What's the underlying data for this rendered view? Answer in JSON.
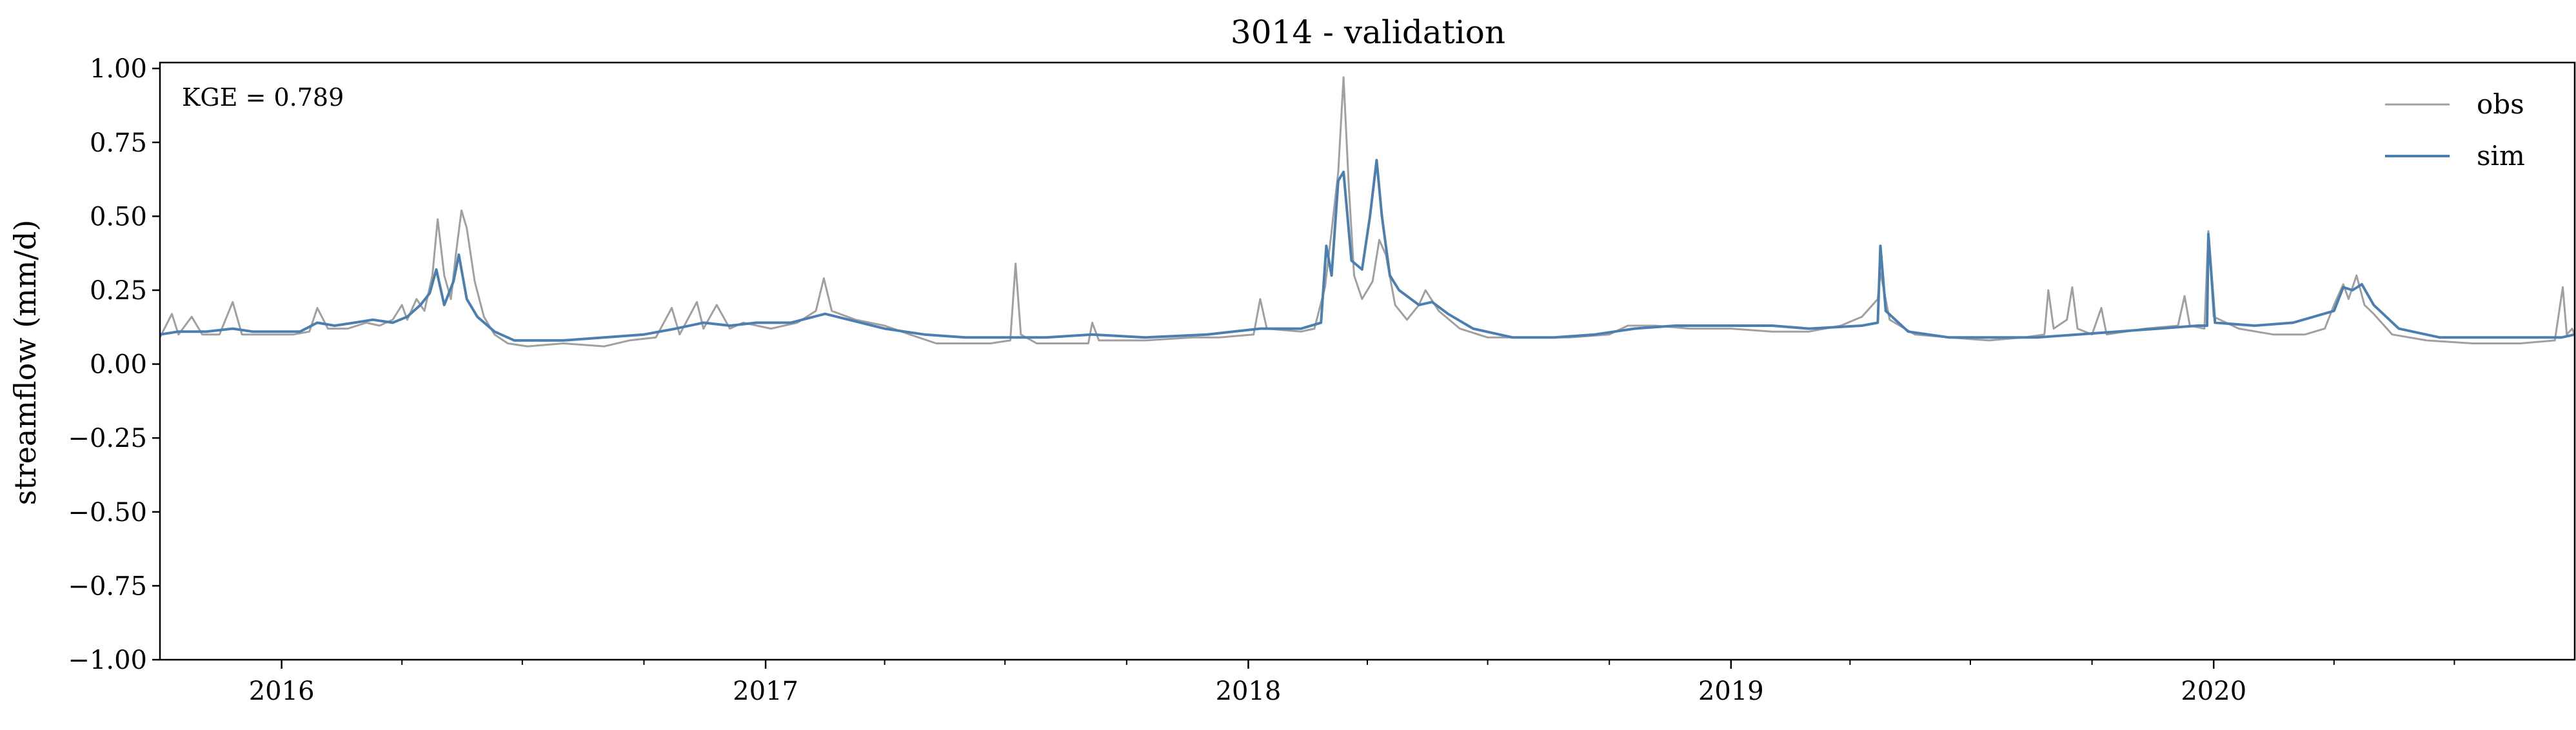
{
  "chart_data": {
    "type": "line",
    "title": "3014 - validation",
    "xlabel": "",
    "ylabel": "streamflow (mm/d)",
    "xlim": [
      "2015-10-01",
      "2020-09-30"
    ],
    "ylim": [
      -1.0,
      1.02
    ],
    "grid": false,
    "legend_position": "top-right",
    "annotation": "KGE = 0.789",
    "yticks": [
      -1.0,
      -0.75,
      -0.5,
      -0.25,
      0.0,
      0.25,
      0.5,
      0.75,
      1.0
    ],
    "ytick_labels": [
      "−1.00",
      "−0.75",
      "−0.50",
      "−0.25",
      "0.00",
      "0.25",
      "0.50",
      "0.75",
      "1.00"
    ],
    "xticks": [
      "2016-01-01",
      "2017-01-01",
      "2018-01-01",
      "2019-01-01",
      "2020-01-01"
    ],
    "xtick_labels": [
      "2016",
      "2017",
      "2018",
      "2019",
      "2020"
    ],
    "series": [
      {
        "name": "obs",
        "color": "#a0a0a0",
        "points": [
          [
            "2015-10-01",
            0.09
          ],
          [
            "2015-10-10",
            0.17
          ],
          [
            "2015-10-15",
            0.1
          ],
          [
            "2015-10-25",
            0.16
          ],
          [
            "2015-11-02",
            0.1
          ],
          [
            "2015-11-15",
            0.1
          ],
          [
            "2015-11-25",
            0.21
          ],
          [
            "2015-12-02",
            0.1
          ],
          [
            "2015-12-20",
            0.1
          ],
          [
            "2016-01-10",
            0.1
          ],
          [
            "2016-01-22",
            0.11
          ],
          [
            "2016-01-28",
            0.19
          ],
          [
            "2016-02-05",
            0.12
          ],
          [
            "2016-02-20",
            0.12
          ],
          [
            "2016-03-05",
            0.14
          ],
          [
            "2016-03-15",
            0.13
          ],
          [
            "2016-03-25",
            0.15
          ],
          [
            "2016-04-01",
            0.2
          ],
          [
            "2016-04-05",
            0.15
          ],
          [
            "2016-04-12",
            0.22
          ],
          [
            "2016-04-18",
            0.18
          ],
          [
            "2016-04-24",
            0.3
          ],
          [
            "2016-04-28",
            0.49
          ],
          [
            "2016-05-03",
            0.3
          ],
          [
            "2016-05-08",
            0.22
          ],
          [
            "2016-05-12",
            0.38
          ],
          [
            "2016-05-16",
            0.52
          ],
          [
            "2016-05-20",
            0.46
          ],
          [
            "2016-05-26",
            0.28
          ],
          [
            "2016-06-02",
            0.16
          ],
          [
            "2016-06-10",
            0.1
          ],
          [
            "2016-06-20",
            0.07
          ],
          [
            "2016-07-05",
            0.06
          ],
          [
            "2016-08-01",
            0.07
          ],
          [
            "2016-09-01",
            0.06
          ],
          [
            "2016-09-20",
            0.08
          ],
          [
            "2016-10-10",
            0.09
          ],
          [
            "2016-10-22",
            0.19
          ],
          [
            "2016-10-28",
            0.1
          ],
          [
            "2016-11-10",
            0.21
          ],
          [
            "2016-11-15",
            0.12
          ],
          [
            "2016-11-25",
            0.2
          ],
          [
            "2016-12-05",
            0.12
          ],
          [
            "2016-12-15",
            0.14
          ],
          [
            "2017-01-05",
            0.12
          ],
          [
            "2017-01-25",
            0.14
          ],
          [
            "2017-02-08",
            0.18
          ],
          [
            "2017-02-14",
            0.29
          ],
          [
            "2017-02-20",
            0.18
          ],
          [
            "2017-03-10",
            0.15
          ],
          [
            "2017-04-01",
            0.13
          ],
          [
            "2017-04-20",
            0.1
          ],
          [
            "2017-05-10",
            0.07
          ],
          [
            "2017-06-05",
            0.07
          ],
          [
            "2017-06-20",
            0.07
          ],
          [
            "2017-07-05",
            0.08
          ],
          [
            "2017-07-09",
            0.34
          ],
          [
            "2017-07-13",
            0.1
          ],
          [
            "2017-07-25",
            0.07
          ],
          [
            "2017-08-20",
            0.07
          ],
          [
            "2017-09-02",
            0.07
          ],
          [
            "2017-09-05",
            0.14
          ],
          [
            "2017-09-10",
            0.08
          ],
          [
            "2017-10-15",
            0.08
          ],
          [
            "2017-11-20",
            0.09
          ],
          [
            "2017-12-10",
            0.09
          ],
          [
            "2018-01-05",
            0.1
          ],
          [
            "2018-01-10",
            0.22
          ],
          [
            "2018-01-15",
            0.12
          ],
          [
            "2018-02-10",
            0.11
          ],
          [
            "2018-02-20",
            0.12
          ],
          [
            "2018-02-28",
            0.26
          ],
          [
            "2018-03-05",
            0.45
          ],
          [
            "2018-03-10",
            0.65
          ],
          [
            "2018-03-14",
            0.97
          ],
          [
            "2018-03-18",
            0.6
          ],
          [
            "2018-03-22",
            0.3
          ],
          [
            "2018-03-28",
            0.22
          ],
          [
            "2018-04-05",
            0.28
          ],
          [
            "2018-04-10",
            0.42
          ],
          [
            "2018-04-15",
            0.37
          ],
          [
            "2018-04-22",
            0.2
          ],
          [
            "2018-05-01",
            0.15
          ],
          [
            "2018-05-10",
            0.2
          ],
          [
            "2018-05-15",
            0.25
          ],
          [
            "2018-05-25",
            0.18
          ],
          [
            "2018-06-10",
            0.12
          ],
          [
            "2018-07-01",
            0.09
          ],
          [
            "2018-08-01",
            0.09
          ],
          [
            "2018-09-01",
            0.09
          ],
          [
            "2018-10-01",
            0.1
          ],
          [
            "2018-10-15",
            0.13
          ],
          [
            "2018-11-05",
            0.13
          ],
          [
            "2018-12-01",
            0.12
          ],
          [
            "2019-01-01",
            0.12
          ],
          [
            "2019-02-01",
            0.11
          ],
          [
            "2019-03-01",
            0.11
          ],
          [
            "2019-03-25",
            0.13
          ],
          [
            "2019-04-10",
            0.16
          ],
          [
            "2019-04-22",
            0.22
          ],
          [
            "2019-04-24",
            0.31
          ],
          [
            "2019-05-01",
            0.15
          ],
          [
            "2019-05-20",
            0.1
          ],
          [
            "2019-06-15",
            0.09
          ],
          [
            "2019-07-15",
            0.08
          ],
          [
            "2019-08-10",
            0.09
          ],
          [
            "2019-08-26",
            0.1
          ],
          [
            "2019-08-29",
            0.25
          ],
          [
            "2019-09-02",
            0.12
          ],
          [
            "2019-09-12",
            0.15
          ],
          [
            "2019-09-16",
            0.26
          ],
          [
            "2019-09-20",
            0.12
          ],
          [
            "2019-10-01",
            0.1
          ],
          [
            "2019-10-08",
            0.19
          ],
          [
            "2019-10-12",
            0.1
          ],
          [
            "2019-11-10",
            0.12
          ],
          [
            "2019-12-05",
            0.13
          ],
          [
            "2019-12-10",
            0.23
          ],
          [
            "2019-12-14",
            0.13
          ],
          [
            "2019-12-25",
            0.12
          ],
          [
            "2019-12-28",
            0.45
          ],
          [
            "2020-01-01",
            0.16
          ],
          [
            "2020-01-20",
            0.12
          ],
          [
            "2020-02-15",
            0.1
          ],
          [
            "2020-03-10",
            0.1
          ],
          [
            "2020-03-25",
            0.12
          ],
          [
            "2020-04-01",
            0.2
          ],
          [
            "2020-04-08",
            0.27
          ],
          [
            "2020-04-12",
            0.22
          ],
          [
            "2020-04-18",
            0.3
          ],
          [
            "2020-04-24",
            0.2
          ],
          [
            "2020-05-01",
            0.17
          ],
          [
            "2020-05-15",
            0.1
          ],
          [
            "2020-06-10",
            0.08
          ],
          [
            "2020-07-15",
            0.07
          ],
          [
            "2020-08-20",
            0.07
          ],
          [
            "2020-09-15",
            0.08
          ],
          [
            "2020-09-21",
            0.26
          ],
          [
            "2020-09-24",
            0.1
          ],
          [
            "2020-09-28",
            0.12
          ],
          [
            "2020-09-30",
            0.1
          ]
        ]
      },
      {
        "name": "sim",
        "color": "#4a7fb0",
        "points": [
          [
            "2015-10-01",
            0.1
          ],
          [
            "2015-10-15",
            0.11
          ],
          [
            "2015-11-05",
            0.11
          ],
          [
            "2015-11-25",
            0.12
          ],
          [
            "2015-12-10",
            0.11
          ],
          [
            "2016-01-01",
            0.11
          ],
          [
            "2016-01-15",
            0.11
          ],
          [
            "2016-01-28",
            0.14
          ],
          [
            "2016-02-10",
            0.13
          ],
          [
            "2016-02-25",
            0.14
          ],
          [
            "2016-03-10",
            0.15
          ],
          [
            "2016-03-25",
            0.14
          ],
          [
            "2016-04-05",
            0.16
          ],
          [
            "2016-04-15",
            0.2
          ],
          [
            "2016-04-22",
            0.24
          ],
          [
            "2016-04-27",
            0.32
          ],
          [
            "2016-05-03",
            0.2
          ],
          [
            "2016-05-10",
            0.28
          ],
          [
            "2016-05-14",
            0.37
          ],
          [
            "2016-05-20",
            0.22
          ],
          [
            "2016-05-28",
            0.16
          ],
          [
            "2016-06-10",
            0.11
          ],
          [
            "2016-06-25",
            0.08
          ],
          [
            "2016-08-01",
            0.08
          ],
          [
            "2016-09-01",
            0.09
          ],
          [
            "2016-10-01",
            0.1
          ],
          [
            "2016-10-25",
            0.12
          ],
          [
            "2016-11-15",
            0.14
          ],
          [
            "2016-12-05",
            0.13
          ],
          [
            "2016-12-25",
            0.14
          ],
          [
            "2017-01-20",
            0.14
          ],
          [
            "2017-02-15",
            0.17
          ],
          [
            "2017-03-05",
            0.15
          ],
          [
            "2017-04-01",
            0.12
          ],
          [
            "2017-05-01",
            0.1
          ],
          [
            "2017-06-01",
            0.09
          ],
          [
            "2017-07-01",
            0.09
          ],
          [
            "2017-08-01",
            0.09
          ],
          [
            "2017-09-05",
            0.1
          ],
          [
            "2017-10-15",
            0.09
          ],
          [
            "2017-12-01",
            0.1
          ],
          [
            "2018-01-10",
            0.12
          ],
          [
            "2018-02-10",
            0.12
          ],
          [
            "2018-02-25",
            0.14
          ],
          [
            "2018-03-01",
            0.4
          ],
          [
            "2018-03-05",
            0.3
          ],
          [
            "2018-03-10",
            0.62
          ],
          [
            "2018-03-14",
            0.65
          ],
          [
            "2018-03-20",
            0.35
          ],
          [
            "2018-03-28",
            0.32
          ],
          [
            "2018-04-03",
            0.5
          ],
          [
            "2018-04-08",
            0.69
          ],
          [
            "2018-04-12",
            0.5
          ],
          [
            "2018-04-18",
            0.3
          ],
          [
            "2018-04-25",
            0.25
          ],
          [
            "2018-05-10",
            0.2
          ],
          [
            "2018-05-20",
            0.21
          ],
          [
            "2018-06-01",
            0.17
          ],
          [
            "2018-06-20",
            0.12
          ],
          [
            "2018-07-20",
            0.09
          ],
          [
            "2018-08-20",
            0.09
          ],
          [
            "2018-09-20",
            0.1
          ],
          [
            "2018-10-20",
            0.12
          ],
          [
            "2018-11-20",
            0.13
          ],
          [
            "2019-01-01",
            0.13
          ],
          [
            "2019-02-01",
            0.13
          ],
          [
            "2019-03-01",
            0.12
          ],
          [
            "2019-04-10",
            0.13
          ],
          [
            "2019-04-22",
            0.14
          ],
          [
            "2019-04-24",
            0.4
          ],
          [
            "2019-04-28",
            0.18
          ],
          [
            "2019-05-15",
            0.11
          ],
          [
            "2019-06-15",
            0.09
          ],
          [
            "2019-07-20",
            0.09
          ],
          [
            "2019-08-20",
            0.09
          ],
          [
            "2019-09-20",
            0.1
          ],
          [
            "2019-10-20",
            0.11
          ],
          [
            "2019-11-20",
            0.12
          ],
          [
            "2019-12-20",
            0.13
          ],
          [
            "2019-12-27",
            0.13
          ],
          [
            "2019-12-28",
            0.44
          ],
          [
            "2020-01-02",
            0.14
          ],
          [
            "2020-02-01",
            0.13
          ],
          [
            "2020-03-01",
            0.14
          ],
          [
            "2020-04-01",
            0.18
          ],
          [
            "2020-04-08",
            0.26
          ],
          [
            "2020-04-15",
            0.25
          ],
          [
            "2020-04-22",
            0.27
          ],
          [
            "2020-05-01",
            0.2
          ],
          [
            "2020-05-20",
            0.12
          ],
          [
            "2020-06-20",
            0.09
          ],
          [
            "2020-07-20",
            0.09
          ],
          [
            "2020-08-20",
            0.09
          ],
          [
            "2020-09-20",
            0.09
          ],
          [
            "2020-09-30",
            0.1
          ]
        ]
      }
    ]
  }
}
